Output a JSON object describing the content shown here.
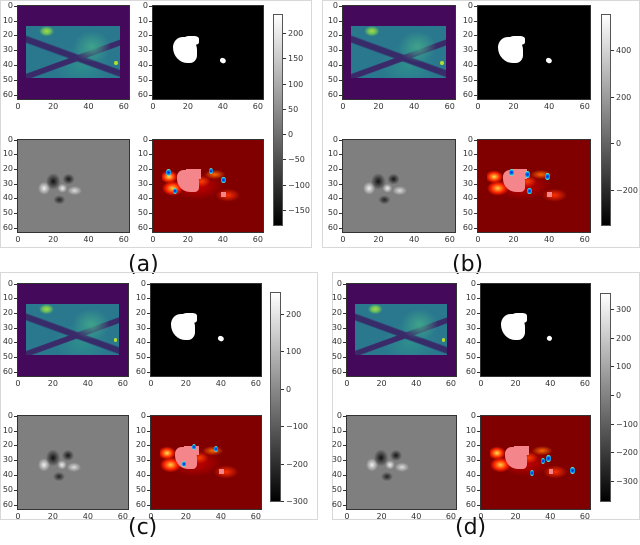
{
  "figure": {
    "panels": [
      {
        "id": "a",
        "label": "(a)",
        "subplots": [
          "input-mri-slice",
          "ground-truth-mask",
          "gradient-map",
          "saliency-heatmap-overlay"
        ],
        "axis_ticks": {
          "x": [
            "0",
            "20",
            "40",
            "60"
          ],
          "y": [
            "0",
            "10",
            "20",
            "30",
            "40",
            "50",
            "60"
          ]
        },
        "colorbar": {
          "ticks": [
            "200",
            "150",
            "100",
            "50",
            "0",
            "−50",
            "−100",
            "−150"
          ],
          "range": [
            -180,
            240
          ],
          "cmap": "gray"
        }
      },
      {
        "id": "b",
        "label": "(b)",
        "subplots": [
          "input-mri-slice",
          "ground-truth-mask",
          "gradient-map",
          "saliency-heatmap-overlay"
        ],
        "axis_ticks": {
          "x": [
            "0",
            "20",
            "40",
            "60"
          ],
          "y": [
            "0",
            "10",
            "20",
            "30",
            "40",
            "50",
            "60"
          ]
        },
        "colorbar": {
          "ticks": [
            "400",
            "200",
            "0",
            "−200"
          ],
          "range": [
            -350,
            560
          ],
          "cmap": "gray"
        }
      },
      {
        "id": "c",
        "label": "(c)",
        "subplots": [
          "input-mri-slice",
          "ground-truth-mask",
          "gradient-map",
          "saliency-heatmap-overlay"
        ],
        "axis_ticks": {
          "x": [
            "0",
            "20",
            "40",
            "60"
          ],
          "y": [
            "0",
            "10",
            "20",
            "30",
            "40",
            "50",
            "60"
          ]
        },
        "colorbar": {
          "ticks": [
            "200",
            "100",
            "0",
            "−100",
            "−200",
            "−300"
          ],
          "range": [
            -300,
            260
          ],
          "cmap": "gray"
        }
      },
      {
        "id": "d",
        "label": "(d)",
        "subplots": [
          "input-mri-slice",
          "ground-truth-mask",
          "gradient-map",
          "saliency-heatmap-overlay"
        ],
        "axis_ticks": {
          "x": [
            "0",
            "20",
            "40",
            "60"
          ],
          "y": [
            "0",
            "10",
            "20",
            "30",
            "40",
            "50",
            "60"
          ]
        },
        "colorbar": {
          "ticks": [
            "300",
            "200",
            "100",
            "0",
            "−100",
            "−200",
            "−300"
          ],
          "range": [
            -370,
            360
          ],
          "cmap": "gray"
        }
      }
    ]
  },
  "colors": {
    "viridis_background": "#44095a",
    "viridis_tissue": "#2a788e",
    "viridis_bright": "#b5de2b",
    "heat_background": "#800000",
    "heat_overlay_pink": "#f4858a",
    "gradient_gray": "#7f7f7f"
  }
}
